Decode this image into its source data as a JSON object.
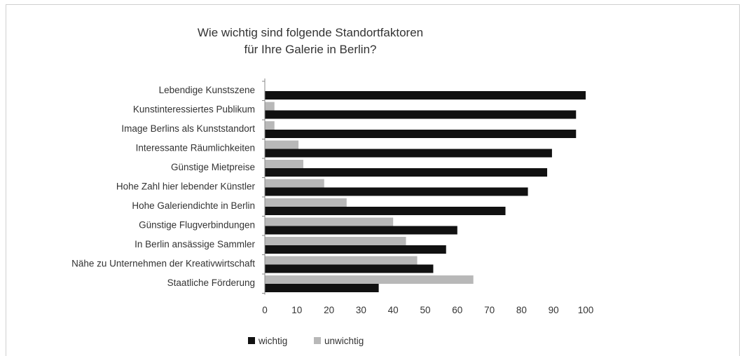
{
  "colors": {
    "wichtig": "#111111",
    "unwichtig": "#b8b8b8",
    "axis": "#888888"
  },
  "chart_data": {
    "type": "bar",
    "orientation": "horizontal",
    "title_lines": [
      "Wie wichtig sind folgende Standortfaktoren",
      "für Ihre Galerie in Berlin?"
    ],
    "categories": [
      "Lebendige Kunstszene",
      "Kunstinteressiertes Publikum",
      "Image Berlins als Kunststandort",
      "Interessante Räumlichkeiten",
      "Günstige Mietpreise",
      "Hohe Zahl hier lebender Künstler",
      "Hohe Galeriendichte in Berlin",
      "Günstige Flugverbindungen",
      "In Berlin ansässige Sammler",
      "Nähe zu Unternehmen der Kreativwirtschaft",
      "Staatliche Förderung"
    ],
    "series": [
      {
        "name": "wichtig",
        "values": [
          100,
          97,
          97,
          89.5,
          88,
          82,
          75,
          60,
          56.5,
          52.5,
          35.5
        ]
      },
      {
        "name": "unwichtig",
        "values": [
          0,
          3,
          3,
          10.5,
          12,
          18.5,
          25.5,
          40,
          44,
          47.5,
          65
        ]
      }
    ],
    "xlim": [
      0,
      100
    ],
    "xticks": [
      "0",
      "10",
      "20",
      "30",
      "40",
      "50",
      "60",
      "70",
      "80",
      "90",
      "100"
    ],
    "grid": false,
    "legend": {
      "placement": "bottom-left",
      "entries": [
        "wichtig",
        "unwichtig"
      ]
    }
  }
}
